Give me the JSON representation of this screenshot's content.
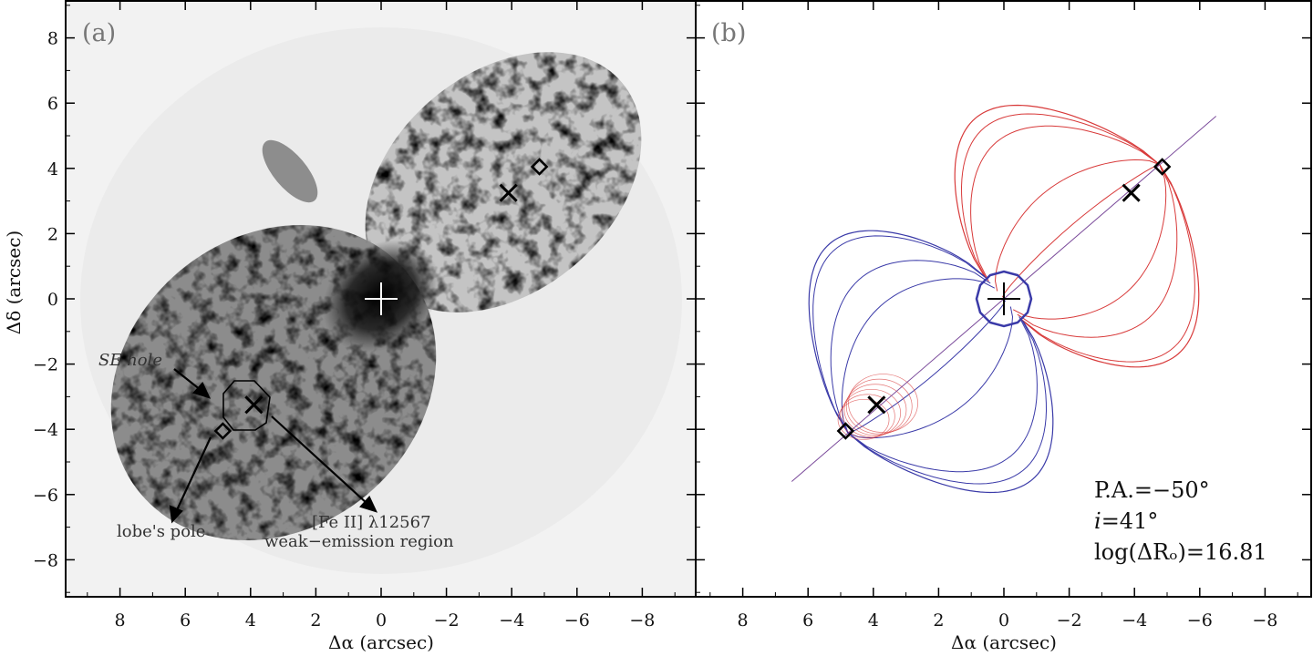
{
  "chart_data": [
    {
      "type": "scatter",
      "panel_label": "(a)",
      "xlabel": "Δα (arcsec)",
      "ylabel": "Δδ (arcsec)",
      "xlim": [
        9,
        -9
      ],
      "ylim": [
        -9,
        9
      ],
      "xticks": [
        "8",
        "6",
        "4",
        "2",
        "0",
        "−2",
        "−4",
        "−6",
        "−8"
      ],
      "yticks": [
        "−8",
        "−6",
        "−4",
        "−2",
        "0",
        "2",
        "4",
        "6",
        "8"
      ],
      "background": "grayscale nebula image (bipolar lobes)",
      "markers": {
        "center_plus": {
          "x": 0,
          "y": 0
        },
        "crosses": [
          {
            "x": -3.9,
            "y": 3.25
          },
          {
            "x": 3.9,
            "y": -3.25
          }
        ],
        "diamonds": [
          {
            "x": -4.85,
            "y": 4.05
          },
          {
            "x": 4.85,
            "y": -4.05
          }
        ]
      },
      "annotations": {
        "se_hole": "SE hole",
        "lobes_pole": "lobe's pole",
        "fe_line1": "[Fe II] λ12567",
        "fe_line2": "weak−emission region"
      }
    },
    {
      "type": "line",
      "panel_label": "(b)",
      "xlabel": "Δα (arcsec)",
      "xlim": [
        9,
        -9
      ],
      "ylim": [
        -9,
        9
      ],
      "xticks": [
        "8",
        "6",
        "4",
        "2",
        "0",
        "−2",
        "−4",
        "−6",
        "−8"
      ],
      "series": [
        {
          "color": "#d83a3a",
          "values": "NW (receding) lobe wireframe outlines"
        },
        {
          "color": "#3a3aa8",
          "values": "SE (approaching) lobe wireframe outlines"
        }
      ],
      "axis_line": {
        "from": {
          "x": 6.5,
          "y": -5.6
        },
        "to": {
          "x": -6.5,
          "y": 5.6
        }
      },
      "markers": {
        "center_plus": {
          "x": 0,
          "y": 0
        },
        "crosses": [
          {
            "x": -3.9,
            "y": 3.25
          },
          {
            "x": 3.9,
            "y": -3.25
          }
        ],
        "diamonds": [
          {
            "x": -4.85,
            "y": 4.05
          },
          {
            "x": 4.85,
            "y": -4.05
          }
        ]
      },
      "model_params": {
        "pa": "P.A.=−50°",
        "incl_sym": "i",
        "incl_val": "=41°",
        "logr": "log(ΔRₒ)=16.81"
      }
    }
  ],
  "colors": {
    "red_lobe": "#d83a3a",
    "blue_lobe": "#3a3aa8",
    "axes": "#000000"
  }
}
